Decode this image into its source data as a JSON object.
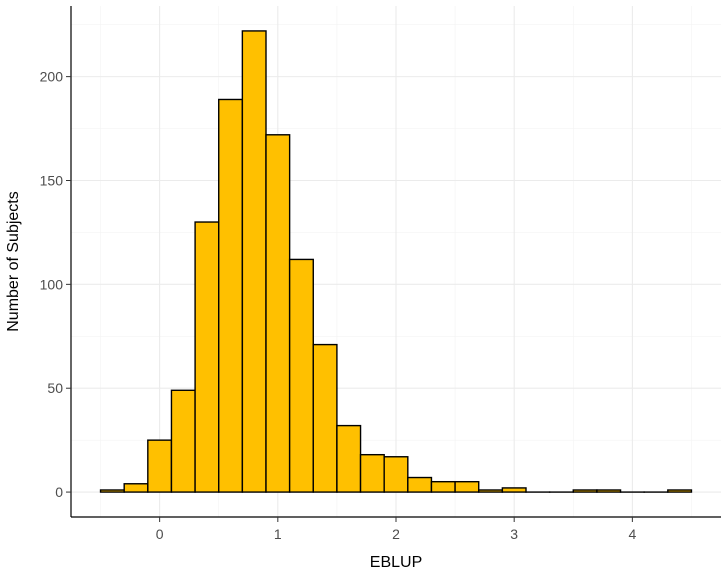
{
  "chart_data": {
    "type": "bar",
    "title": "",
    "xlabel": "EBLUP",
    "ylabel": "Number of Subjects",
    "xlim": [
      -0.75,
      4.75
    ],
    "ylim": [
      -12,
      234
    ],
    "x_ticks": [
      0,
      1,
      2,
      3,
      4
    ],
    "y_ticks": [
      0,
      50,
      100,
      150,
      200
    ],
    "bin_width": 0.2,
    "bins": [
      {
        "x0": -0.5,
        "x1": -0.3,
        "count": 1
      },
      {
        "x0": -0.3,
        "x1": -0.1,
        "count": 4
      },
      {
        "x0": -0.1,
        "x1": 0.1,
        "count": 25
      },
      {
        "x0": 0.1,
        "x1": 0.3,
        "count": 49
      },
      {
        "x0": 0.3,
        "x1": 0.5,
        "count": 130
      },
      {
        "x0": 0.5,
        "x1": 0.7,
        "count": 189
      },
      {
        "x0": 0.7,
        "x1": 0.9,
        "count": 222
      },
      {
        "x0": 0.9,
        "x1": 1.1,
        "count": 172
      },
      {
        "x0": 1.1,
        "x1": 1.3,
        "count": 112
      },
      {
        "x0": 1.3,
        "x1": 1.5,
        "count": 71
      },
      {
        "x0": 1.5,
        "x1": 1.7,
        "count": 32
      },
      {
        "x0": 1.7,
        "x1": 1.9,
        "count": 18
      },
      {
        "x0": 1.9,
        "x1": 2.1,
        "count": 17
      },
      {
        "x0": 2.1,
        "x1": 2.3,
        "count": 7
      },
      {
        "x0": 2.3,
        "x1": 2.5,
        "count": 5
      },
      {
        "x0": 2.5,
        "x1": 2.7,
        "count": 5
      },
      {
        "x0": 2.7,
        "x1": 2.9,
        "count": 1
      },
      {
        "x0": 2.9,
        "x1": 3.1,
        "count": 2
      },
      {
        "x0": 3.1,
        "x1": 3.3,
        "count": 0
      },
      {
        "x0": 3.3,
        "x1": 3.5,
        "count": 0
      },
      {
        "x0": 3.5,
        "x1": 3.7,
        "count": 1
      },
      {
        "x0": 3.7,
        "x1": 3.9,
        "count": 1
      },
      {
        "x0": 3.9,
        "x1": 4.1,
        "count": 0
      },
      {
        "x0": 4.1,
        "x1": 4.3,
        "count": 0
      },
      {
        "x0": 4.3,
        "x1": 4.5,
        "count": 1
      }
    ],
    "grid": true,
    "legend": "none",
    "bar_color": "#FFC000",
    "bar_outline": "#000000"
  }
}
